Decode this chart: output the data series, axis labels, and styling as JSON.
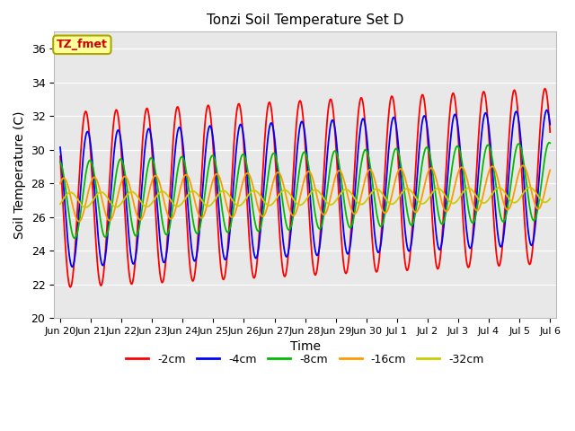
{
  "title": "Tonzi Soil Temperature Set D",
  "xlabel": "Time",
  "ylabel": "Soil Temperature (C)",
  "ylim": [
    20,
    37
  ],
  "yticks": [
    20,
    22,
    24,
    26,
    28,
    30,
    32,
    34,
    36
  ],
  "background_color": "#e8e8e8",
  "legend_label": "TZ_fmet",
  "legend_bg": "#ffff99",
  "legend_border": "#aaa800",
  "series_colors": {
    "-2cm": "#ff0000",
    "-4cm": "#0000ff",
    "-8cm": "#00bb00",
    "-16cm": "#ff9900",
    "-32cm": "#cccc00"
  },
  "series_linewidths": {
    "-2cm": 1.3,
    "-4cm": 1.3,
    "-8cm": 1.3,
    "-16cm": 1.3,
    "-32cm": 1.3
  },
  "n_days": 16,
  "samples_per_day": 48,
  "base_temp": 27.0,
  "amplitudes": {
    "-2cm": 5.2,
    "-4cm": 4.0,
    "-8cm": 2.3,
    "-16cm": 1.3,
    "-32cm": 0.45
  },
  "phase_shifts_days": {
    "-2cm": 0.0,
    "-4cm": 0.06,
    "-8cm": 0.14,
    "-16cm": 0.28,
    "-32cm": 0.5
  },
  "trend_slopes": {
    "-2cm": 0.09,
    "-4cm": 0.085,
    "-8cm": 0.07,
    "-16cm": 0.05,
    "-32cm": 0.02
  },
  "tick_labels": [
    "Jun 20",
    "Jun 21",
    "Jun 22",
    "Jun 23",
    "Jun 24",
    "Jun 25",
    "Jun 26",
    "Jun 27",
    "Jun 28",
    "Jun 29",
    "Jun 30",
    "Jul 1",
    "Jul 2",
    "Jul 3",
    "Jul 4",
    "Jul 5",
    "Jul 6"
  ],
  "tick_positions": [
    0,
    1,
    2,
    3,
    4,
    5,
    6,
    7,
    8,
    9,
    10,
    11,
    12,
    13,
    14,
    15,
    16
  ],
  "xlim": [
    -0.2,
    16.2
  ]
}
